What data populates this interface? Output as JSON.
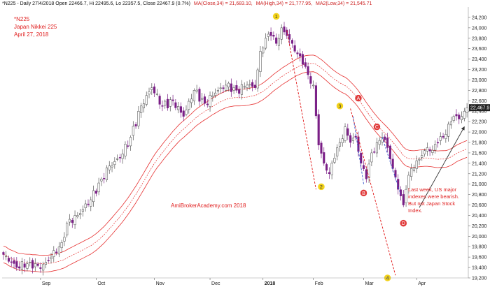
{
  "header": {
    "info_plain": "*N225 - Daily 27/4/2018 Open 22466.7, Hi 22495.6, Lo 22357.5, Close 22467.9 (0.7%)",
    "ma_close_label": "MA(Close,34) = 21,683.10,",
    "ma_high_label": "MA(High,34) = 21,777.95,",
    "ma_low_label": "MA2(Low,34) = 21,545.71"
  },
  "title": {
    "symbol": "*N225",
    "name": "Japan Nikkei 225",
    "date": "April 27, 2018"
  },
  "watermark": "AmiBrokerAcademy.com  2018",
  "annotation_text": [
    "Last week, US major",
    "indexes were bearish.",
    "But not Japan Stock",
    "Index."
  ],
  "colors": {
    "candle_up": "#ffffff",
    "candle_down": "#7a1f86",
    "ma_band": "#e63030",
    "trend_red": "#e01010",
    "trend_blue": "#3355cc",
    "arrow": "#333333",
    "marker_yellow": "#f2d21a",
    "marker_red": "#e03a3a",
    "axis_label_bg": "#e02020"
  },
  "chart_data": {
    "type": "candlestick",
    "y_axis": {
      "min": 19200,
      "max": 24400,
      "ticks": [
        19200,
        19400,
        19600,
        19800,
        20000,
        20200,
        20400,
        20600,
        20800,
        21000,
        21200,
        21400,
        21600,
        21800,
        22000,
        22200,
        22400,
        22600,
        22800,
        23000,
        23200,
        23400,
        23600,
        23800,
        24000,
        24200
      ],
      "tick_labels": [
        "19,200",
        "19,400",
        "19,600",
        "19,800",
        "20,000",
        "20,200",
        "20,400",
        "20,600",
        "20,800",
        "21,000",
        "21,200",
        "21,400",
        "21,600",
        "21,800",
        "22,000",
        "22,200",
        "22,400",
        "22,600",
        "22,800",
        "23,000",
        "23,200",
        "23,400",
        "23,600",
        "23,800",
        "24,000",
        "24,200"
      ],
      "position": "right",
      "last_value_label": "22,467.9",
      "last_value": 22467.9
    },
    "x_axis": {
      "months": [
        {
          "label": "Sep",
          "index": 14
        },
        {
          "label": "Oct",
          "index": 35
        },
        {
          "label": "Nov",
          "index": 57
        },
        {
          "label": "Dec",
          "index": 78
        },
        {
          "label": "2018",
          "index": 98
        },
        {
          "label": "Feb",
          "index": 117
        },
        {
          "label": "Mar",
          "index": 136
        },
        {
          "label": "Apr",
          "index": 156
        }
      ]
    },
    "candles_count": 176,
    "keyframes": [
      {
        "i": 0,
        "c": 19650
      },
      {
        "i": 5,
        "c": 19400
      },
      {
        "i": 10,
        "c": 19500
      },
      {
        "i": 14,
        "c": 19380
      },
      {
        "i": 18,
        "c": 19600
      },
      {
        "i": 22,
        "c": 19880
      },
      {
        "i": 24,
        "c": 20250
      },
      {
        "i": 28,
        "c": 20400
      },
      {
        "i": 33,
        "c": 20700
      },
      {
        "i": 37,
        "c": 21100
      },
      {
        "i": 40,
        "c": 21350
      },
      {
        "i": 44,
        "c": 21500
      },
      {
        "i": 48,
        "c": 21900
      },
      {
        "i": 52,
        "c": 22500
      },
      {
        "i": 56,
        "c": 22850
      },
      {
        "i": 60,
        "c": 22500
      },
      {
        "i": 64,
        "c": 22600
      },
      {
        "i": 68,
        "c": 22300
      },
      {
        "i": 72,
        "c": 22800
      },
      {
        "i": 76,
        "c": 22550
      },
      {
        "i": 80,
        "c": 22750
      },
      {
        "i": 84,
        "c": 22900
      },
      {
        "i": 88,
        "c": 22800
      },
      {
        "i": 92,
        "c": 22900
      },
      {
        "i": 95,
        "c": 22850
      },
      {
        "i": 97,
        "c": 23550
      },
      {
        "i": 99,
        "c": 23800
      },
      {
        "i": 101,
        "c": 23850
      },
      {
        "i": 103,
        "c": 23700
      },
      {
        "i": 105,
        "c": 24000
      },
      {
        "i": 107,
        "c": 23850
      },
      {
        "i": 109,
        "c": 23700
      },
      {
        "i": 111,
        "c": 23500
      },
      {
        "i": 113,
        "c": 23300
      },
      {
        "i": 115,
        "c": 23100
      },
      {
        "i": 117,
        "c": 22900
      },
      {
        "i": 119,
        "c": 21750
      },
      {
        "i": 121,
        "c": 21400
      },
      {
        "i": 123,
        "c": 21200
      },
      {
        "i": 125,
        "c": 21500
      },
      {
        "i": 127,
        "c": 21800
      },
      {
        "i": 129,
        "c": 22100
      },
      {
        "i": 131,
        "c": 21800
      },
      {
        "i": 133,
        "c": 21900
      },
      {
        "i": 135,
        "c": 21400
      },
      {
        "i": 137,
        "c": 21100
      },
      {
        "i": 139,
        "c": 21600
      },
      {
        "i": 141,
        "c": 21800
      },
      {
        "i": 143,
        "c": 21900
      },
      {
        "i": 145,
        "c": 21700
      },
      {
        "i": 147,
        "c": 21300
      },
      {
        "i": 149,
        "c": 20900
      },
      {
        "i": 151,
        "c": 20600
      },
      {
        "i": 152,
        "c": 20900
      },
      {
        "i": 154,
        "c": 21300
      },
      {
        "i": 156,
        "c": 21450
      },
      {
        "i": 158,
        "c": 21550
      },
      {
        "i": 160,
        "c": 21700
      },
      {
        "i": 162,
        "c": 21650
      },
      {
        "i": 164,
        "c": 21800
      },
      {
        "i": 166,
        "c": 21900
      },
      {
        "i": 168,
        "c": 22150
      },
      {
        "i": 170,
        "c": 22300
      },
      {
        "i": 172,
        "c": 22250
      },
      {
        "i": 174,
        "c": 22400
      },
      {
        "i": 175,
        "c": 22467.9
      }
    ],
    "labels": [
      {
        "text": "1",
        "style": "yellow",
        "i": 103,
        "v": 24220
      },
      {
        "text": "2",
        "style": "yellow",
        "i": 120,
        "v": 20950
      },
      {
        "text": "3",
        "style": "yellow",
        "i": 127,
        "v": 22500
      },
      {
        "text": "4",
        "style": "yellow",
        "i": 145,
        "v": 19200
      },
      {
        "text": "A",
        "style": "red",
        "i": 134,
        "v": 22650
      },
      {
        "text": "B",
        "style": "red",
        "i": 136,
        "v": 20830
      },
      {
        "text": "C",
        "style": "red",
        "i": 141,
        "v": 22100
      },
      {
        "text": "D",
        "style": "red",
        "i": 151,
        "v": 20250
      }
    ],
    "trend_lines": [
      {
        "color": "red",
        "from": {
          "i": 107,
          "v": 23950
        },
        "to": {
          "i": 118,
          "v": 20900
        }
      },
      {
        "color": "red",
        "from": {
          "i": 131,
          "v": 22450
        },
        "to": {
          "i": 148,
          "v": 19250
        }
      },
      {
        "color": "blue",
        "from": {
          "i": 132,
          "v": 22300
        },
        "to": {
          "i": 136,
          "v": 21000
        }
      },
      {
        "color": "blue",
        "from": {
          "i": 143,
          "v": 21900
        },
        "to": {
          "i": 150,
          "v": 20800
        }
      },
      {
        "color": "arrow",
        "from": {
          "i": 157,
          "v": 20550
        },
        "to": {
          "i": 174,
          "v": 22100
        }
      }
    ],
    "moving_average": {
      "period": 34,
      "band_offset_high": 160,
      "band_offset_low": 160
    }
  }
}
